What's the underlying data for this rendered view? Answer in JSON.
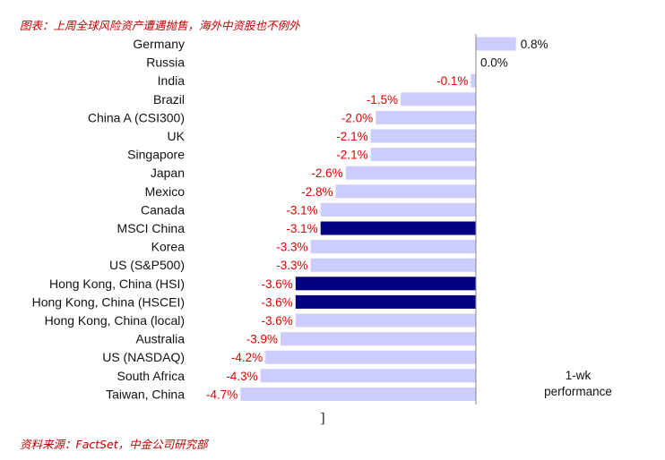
{
  "header": {
    "title": "图表：上周全球风险资产遭遇抛售，海外中资股也不例外"
  },
  "footer": {
    "source": "资料来源：FactSet，中金公司研究部"
  },
  "chart_data": {
    "type": "bar",
    "orientation": "horizontal",
    "categories": [
      "Germany",
      "Russia",
      "India",
      "Brazil",
      "China A (CSI300)",
      "UK",
      "Singapore",
      "Japan",
      "Mexico",
      "Canada",
      "MSCI China",
      "Korea",
      "US (S&P500)",
      "Hong Kong, China (HSI)",
      "Hong Kong, China (HSCEI)",
      "Hong Kong, China (local)",
      "Australia",
      "US (NASDAQ)",
      "South Africa",
      "Taiwan, China"
    ],
    "values": [
      0.8,
      0.0,
      -0.1,
      -1.5,
      -2.0,
      -2.1,
      -2.1,
      -2.6,
      -2.8,
      -3.1,
      -3.1,
      -3.3,
      -3.3,
      -3.6,
      -3.6,
      -3.6,
      -3.9,
      -4.2,
      -4.3,
      -4.7
    ],
    "value_labels": [
      "0.8%",
      "0.0%",
      "-0.1%",
      "-1.5%",
      "-2.0%",
      "-2.1%",
      "-2.1%",
      "-2.6%",
      "-2.8%",
      "-3.1%",
      "-3.1%",
      "-3.3%",
      "-3.3%",
      "-3.6%",
      "-3.6%",
      "-3.6%",
      "-3.9%",
      "-4.2%",
      "-4.3%",
      "-4.7%"
    ],
    "highlighted": [
      "MSCI China",
      "Hong Kong, China (HSI)",
      "Hong Kong, China (HSCEI)"
    ],
    "legend": {
      "text_line1": "1-wk",
      "text_line2": "performance",
      "placement": "bottom-right"
    },
    "stray_mark": "]",
    "colors": {
      "bar": "#ccccff",
      "highlight": "#000080",
      "negative_label": "#e00000",
      "positive_label": "#111111",
      "axis": "#888888"
    },
    "xlim": [
      -5.0,
      1.0
    ],
    "grid": false
  }
}
